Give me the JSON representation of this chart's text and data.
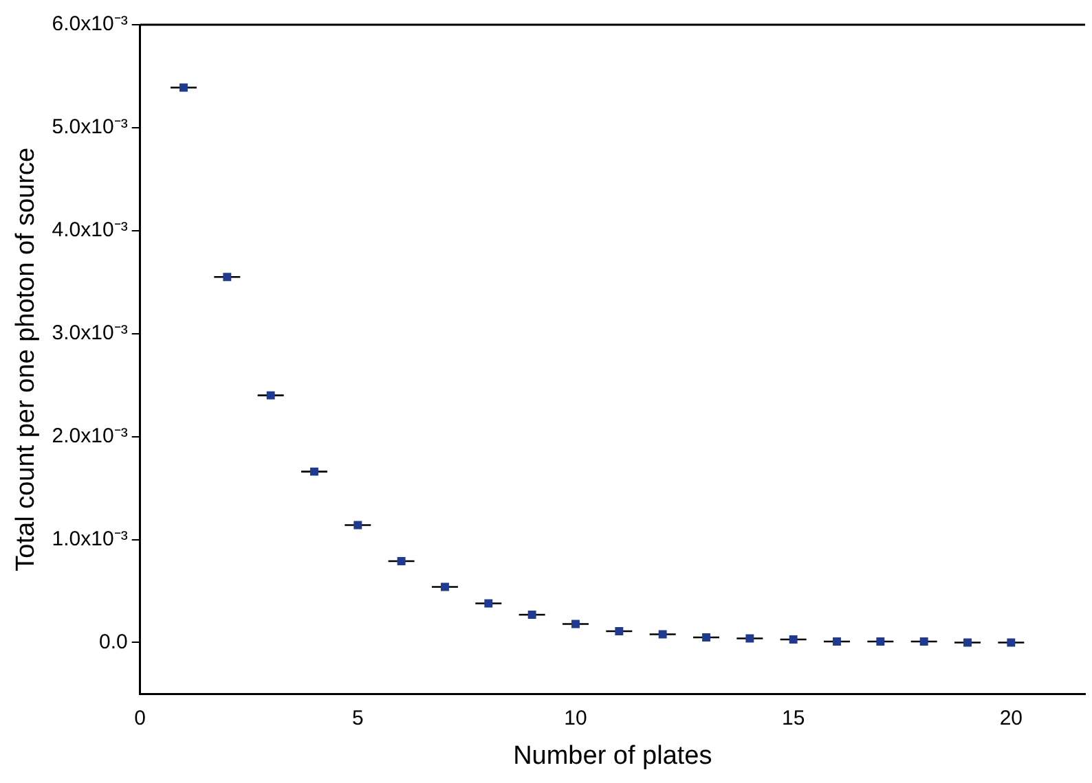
{
  "chart_data": {
    "type": "scatter",
    "xlabel": "Number of plates",
    "ylabel": "Total count per one photon of source",
    "x": [
      1,
      2,
      3,
      4,
      5,
      6,
      7,
      8,
      9,
      10,
      11,
      12,
      13,
      14,
      15,
      16,
      17,
      18,
      19,
      20
    ],
    "values": [
      0.00539,
      0.00355,
      0.0024,
      0.00166,
      0.00114,
      0.00079,
      0.00054,
      0.00038,
      0.00027,
      0.00018,
      0.00011,
      8e-05,
      5e-05,
      4e-05,
      3e-05,
      1e-05,
      1e-05,
      1e-05,
      0,
      0
    ],
    "xerrors": [
      0.3,
      0.3,
      0.3,
      0.3,
      0.3,
      0.3,
      0.3,
      0.3,
      0.3,
      0.3,
      0.3,
      0.3,
      0.3,
      0.3,
      0.3,
      0.3,
      0.3,
      0.3,
      0.3,
      0.3
    ],
    "color": "#1f3a8f",
    "marker": "square",
    "xlim": [
      0,
      21.7
    ],
    "xticks": [
      0,
      5,
      10,
      15,
      20
    ],
    "ylim": [
      -0.0005,
      0.006
    ],
    "yticks": [
      {
        "value": 0,
        "label": "0.0"
      },
      {
        "value": 0.001,
        "label": "1.0x10⁻³"
      },
      {
        "value": 0.002,
        "label": "2.0x10⁻³"
      },
      {
        "value": 0.003,
        "label": "3.0x10⁻³"
      },
      {
        "value": 0.004,
        "label": "4.0x10⁻³"
      },
      {
        "value": 0.005,
        "label": "5.0x10⁻³"
      },
      {
        "value": 0.006,
        "label": "6.0x10⁻³"
      }
    ],
    "grid": false,
    "legend": false
  }
}
